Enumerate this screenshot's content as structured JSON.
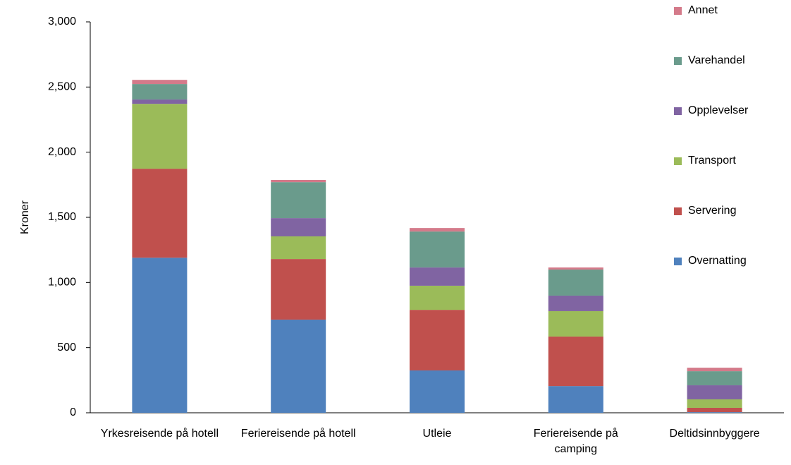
{
  "chart_data": {
    "type": "stacked_bar",
    "y_label": "Kroner",
    "categories": [
      "Yrkesreisende på hotell",
      "Feriereisende på hotell",
      "Utleie",
      "Feriereisende på camping",
      "Deltidsinnbyggere"
    ],
    "series": [
      {
        "name": "Overnatting",
        "color": "#4f81bd",
        "values": [
          1190,
          715,
          325,
          205,
          5
        ]
      },
      {
        "name": "Servering",
        "color": "#c0504d",
        "values": [
          683,
          465,
          465,
          380,
          33
        ]
      },
      {
        "name": "Transport",
        "color": "#9bbb59",
        "values": [
          498,
          174,
          185,
          195,
          65
        ]
      },
      {
        "name": "Opplevelser",
        "color": "#8064a2",
        "values": [
          33,
          140,
          140,
          119,
          108
        ]
      },
      {
        "name": "Varehandel",
        "color": "#6a9b8c",
        "values": [
          119,
          276,
          276,
          200,
          108
        ]
      },
      {
        "name": "Annet",
        "color": "#d47a8a",
        "values": [
          32,
          17,
          27,
          16,
          27
        ]
      }
    ],
    "ylim": [
      0,
      3000
    ],
    "yticks": [
      0,
      500,
      {
        "value": 1000,
        "label": "1,000"
      },
      {
        "value": 1500,
        "label": "1,500"
      },
      {
        "value": 2000,
        "label": "2,000"
      },
      {
        "value": 2500,
        "label": "2,500"
      },
      {
        "value": 3000,
        "label": "3,000"
      }
    ],
    "grid": false,
    "legend": "right"
  }
}
